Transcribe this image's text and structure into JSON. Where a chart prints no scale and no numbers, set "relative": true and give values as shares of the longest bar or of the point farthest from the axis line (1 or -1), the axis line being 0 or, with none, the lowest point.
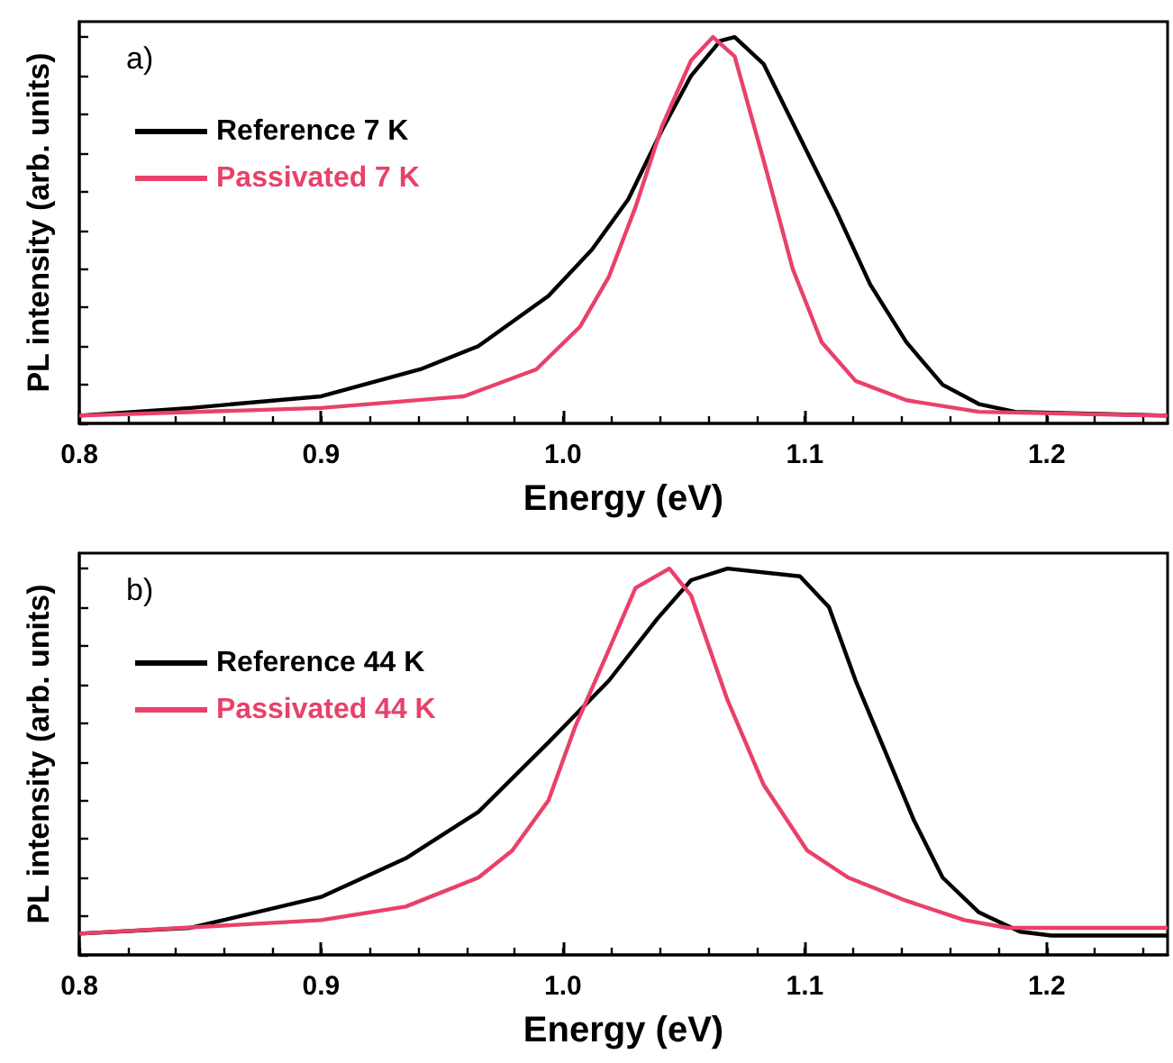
{
  "chart_data": [
    {
      "type": "line",
      "relative": true,
      "xlabel": "Energy (eV)",
      "ylabel": "PL intensity (arb. units)",
      "annotations": [
        "a)"
      ],
      "legend": "top left",
      "marker": "none",
      "line_style": "solid",
      "grid": false,
      "xlim": [
        0.8,
        1.25
      ],
      "xticks": [
        {
          "value": 0.8,
          "label": "0.8"
        },
        {
          "value": 0.9,
          "label": "0.9"
        },
        {
          "value": 1.0,
          "label": "1.0"
        },
        {
          "value": 1.1,
          "label": "1.1"
        },
        {
          "value": 1.2,
          "label": "1.2"
        }
      ],
      "series": [
        {
          "name": "Reference 7 K",
          "color": "#000000",
          "x": [
            0.8,
            0.846,
            0.9,
            0.941,
            0.965,
            0.994,
            1.012,
            1.027,
            1.041,
            1.053,
            1.065,
            1.071,
            1.083,
            1.098,
            1.113,
            1.127,
            1.142,
            1.157,
            1.172,
            1.187,
            1.25
          ],
          "values": [
            0.02,
            0.04,
            0.07,
            0.14,
            0.2,
            0.33,
            0.45,
            0.58,
            0.76,
            0.9,
            0.99,
            1.0,
            0.93,
            0.74,
            0.55,
            0.36,
            0.21,
            0.1,
            0.05,
            0.03,
            0.02
          ]
        },
        {
          "name": "Passivated 7 K",
          "color": "#e8416a",
          "x": [
            0.8,
            0.9,
            0.959,
            0.989,
            1.007,
            1.019,
            1.03,
            1.041,
            1.053,
            1.062,
            1.071,
            1.083,
            1.095,
            1.107,
            1.121,
            1.142,
            1.172,
            1.25
          ],
          "values": [
            0.02,
            0.04,
            0.07,
            0.14,
            0.25,
            0.38,
            0.56,
            0.77,
            0.94,
            1.0,
            0.95,
            0.68,
            0.4,
            0.21,
            0.11,
            0.06,
            0.03,
            0.02
          ]
        }
      ]
    },
    {
      "type": "line",
      "relative": true,
      "xlabel": "Energy (eV)",
      "ylabel": "PL intensity (arb. units)",
      "annotations": [
        "b)"
      ],
      "legend": "top left",
      "marker": "none",
      "line_style": "solid",
      "grid": false,
      "xlim": [
        0.8,
        1.25
      ],
      "xticks": [
        {
          "value": 0.8,
          "label": "0.8"
        },
        {
          "value": 0.9,
          "label": "0.9"
        },
        {
          "value": 1.0,
          "label": "1.0"
        },
        {
          "value": 1.1,
          "label": "1.1"
        },
        {
          "value": 1.2,
          "label": "1.2"
        }
      ],
      "series": [
        {
          "name": "Reference 44 K",
          "color": "#000000",
          "x": [
            0.8,
            0.846,
            0.9,
            0.935,
            0.965,
            0.994,
            1.019,
            1.039,
            1.053,
            1.068,
            1.098,
            1.11,
            1.121,
            1.133,
            1.145,
            1.157,
            1.172,
            1.189,
            1.202,
            1.25
          ],
          "values": [
            0.055,
            0.07,
            0.15,
            0.25,
            0.37,
            0.55,
            0.71,
            0.87,
            0.97,
            1.0,
            0.98,
            0.9,
            0.71,
            0.53,
            0.35,
            0.2,
            0.11,
            0.06,
            0.05,
            0.05
          ]
        },
        {
          "name": "Passivated 44 K",
          "color": "#e8416a",
          "x": [
            0.8,
            0.9,
            0.935,
            0.965,
            0.979,
            0.994,
            1.005,
            1.019,
            1.03,
            1.044,
            1.053,
            1.068,
            1.083,
            1.101,
            1.118,
            1.142,
            1.166,
            1.184,
            1.25
          ],
          "values": [
            0.055,
            0.09,
            0.125,
            0.2,
            0.27,
            0.4,
            0.59,
            0.79,
            0.95,
            1.0,
            0.93,
            0.66,
            0.44,
            0.27,
            0.2,
            0.14,
            0.09,
            0.07,
            0.07
          ]
        }
      ]
    }
  ]
}
